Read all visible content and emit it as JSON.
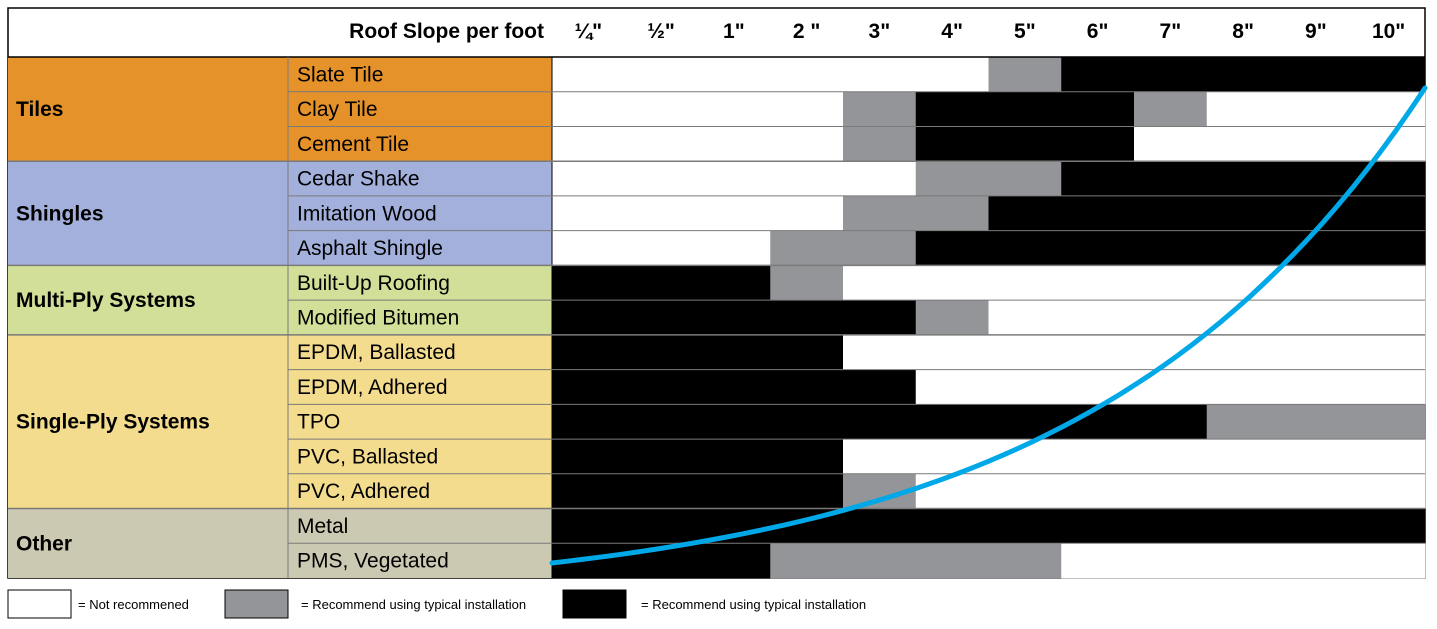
{
  "chart_data": {
    "type": "table",
    "header_label": "Roof Slope per foot",
    "columns": [
      "¼\"",
      "½\"",
      "1\"",
      "2 \"",
      "3\"",
      "4\"",
      "5\"",
      "6\"",
      "7\"",
      "8\"",
      "9\"",
      "10\""
    ],
    "colors": {
      "N": "#ffffff",
      "G": "#939598",
      "B": "#000000",
      "curve": "#00a8e8"
    },
    "groups": [
      {
        "name": "Tiles",
        "color": "#e6922a",
        "rows": [
          {
            "label": "Slate Tile",
            "cells": [
              "N",
              "N",
              "N",
              "N",
              "N",
              "N",
              "G",
              "B",
              "B",
              "B",
              "B",
              "B"
            ]
          },
          {
            "label": "Clay Tile",
            "cells": [
              "N",
              "N",
              "N",
              "N",
              "G",
              "B",
              "B",
              "B",
              "G",
              "N",
              "N",
              "N"
            ]
          },
          {
            "label": "Cement Tile",
            "cells": [
              "N",
              "N",
              "N",
              "N",
              "G",
              "B",
              "B",
              "B",
              "N",
              "N",
              "N",
              "N"
            ]
          }
        ]
      },
      {
        "name": "Shingles",
        "color": "#a3b0db",
        "rows": [
          {
            "label": "Cedar Shake",
            "cells": [
              "N",
              "N",
              "N",
              "N",
              "N",
              "G",
              "G",
              "B",
              "B",
              "B",
              "B",
              "B"
            ]
          },
          {
            "label": "Imitation Wood",
            "cells": [
              "N",
              "N",
              "N",
              "N",
              "G",
              "G",
              "B",
              "B",
              "B",
              "B",
              "B",
              "B"
            ]
          },
          {
            "label": "Asphalt Shingle",
            "cells": [
              "N",
              "N",
              "N",
              "G",
              "G",
              "B",
              "B",
              "B",
              "B",
              "B",
              "B",
              "B"
            ]
          }
        ]
      },
      {
        "name": "Multi-Ply Systems",
        "color": "#d2df98",
        "rows": [
          {
            "label": "Built-Up Roofing",
            "cells": [
              "B",
              "B",
              "B",
              "G",
              "N",
              "N",
              "N",
              "N",
              "N",
              "N",
              "N",
              "N"
            ]
          },
          {
            "label": "Modified Bitumen",
            "cells": [
              "B",
              "B",
              "B",
              "B",
              "B",
              "G",
              "N",
              "N",
              "N",
              "N",
              "N",
              "N"
            ]
          }
        ]
      },
      {
        "name": "Single-Ply Systems",
        "color": "#f4dc8e",
        "rows": [
          {
            "label": "EPDM, Ballasted",
            "cells": [
              "B",
              "B",
              "B",
              "B",
              "N",
              "N",
              "N",
              "N",
              "N",
              "N",
              "N",
              "N"
            ]
          },
          {
            "label": "EPDM, Adhered",
            "cells": [
              "B",
              "B",
              "B",
              "B",
              "B",
              "N",
              "N",
              "N",
              "N",
              "N",
              "N",
              "N"
            ]
          },
          {
            "label": "TPO",
            "cells": [
              "B",
              "B",
              "B",
              "B",
              "B",
              "B",
              "B",
              "B",
              "B",
              "G",
              "G",
              "G"
            ]
          },
          {
            "label": "PVC, Ballasted",
            "cells": [
              "B",
              "B",
              "B",
              "B",
              "N",
              "N",
              "N",
              "N",
              "N",
              "N",
              "N",
              "N"
            ]
          },
          {
            "label": "PVC, Adhered",
            "cells": [
              "B",
              "B",
              "B",
              "B",
              "G",
              "N",
              "N",
              "N",
              "N",
              "N",
              "N",
              "N"
            ]
          }
        ]
      },
      {
        "name": "Other",
        "color": "#ccc9b3",
        "rows": [
          {
            "label": "Metal",
            "cells": [
              "B",
              "B",
              "B",
              "B",
              "B",
              "B",
              "B",
              "B",
              "B",
              "B",
              "B",
              "B"
            ]
          },
          {
            "label": "PMS, Vegetated",
            "cells": [
              "B",
              "B",
              "B",
              "G",
              "G",
              "G",
              "G",
              "N",
              "N",
              "N",
              "N",
              "N"
            ]
          }
        ]
      }
    ],
    "legend": [
      {
        "key": "N",
        "text": "= Not recommened"
      },
      {
        "key": "G",
        "text": "= Recommend using typical installation"
      },
      {
        "key": "B",
        "text": "= Recommend using typical installation"
      }
    ]
  }
}
